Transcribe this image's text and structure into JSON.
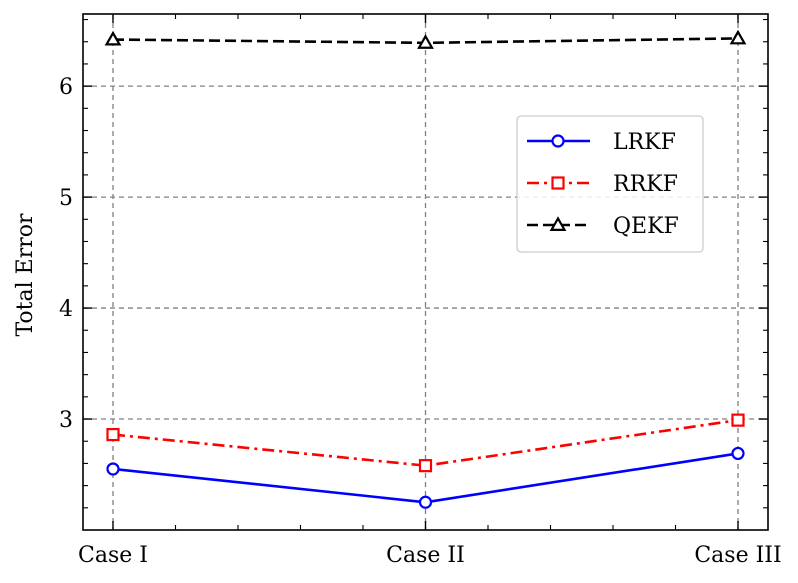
{
  "chart_data": {
    "type": "line",
    "categories": [
      "Case I",
      "Case II",
      "Case III"
    ],
    "ylabel": "Total Error",
    "xlabel": "",
    "ylim": [
      2.0,
      6.65
    ],
    "yticks": [
      3,
      4,
      5,
      6
    ],
    "grid": true,
    "legend_position": "upper-right",
    "series": [
      {
        "name": "LRKF",
        "values": [
          2.55,
          2.25,
          2.69
        ],
        "color": "#0000ff",
        "marker": "circle",
        "linestyle": "solid"
      },
      {
        "name": "RRKF",
        "values": [
          2.86,
          2.58,
          2.99
        ],
        "color": "#ff0000",
        "marker": "square",
        "linestyle": "dashdot"
      },
      {
        "name": "QEKF",
        "values": [
          6.42,
          6.39,
          6.43
        ],
        "color": "#000000",
        "marker": "triangle",
        "linestyle": "dashed"
      }
    ]
  }
}
